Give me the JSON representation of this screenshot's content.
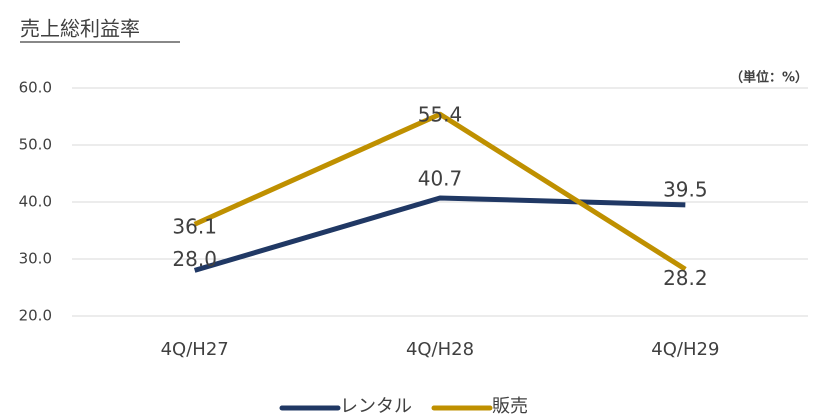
{
  "chart_data": {
    "type": "line",
    "title": "売上総利益率",
    "subtitle": "（単位：%）",
    "categories": [
      "4Q/H27",
      "4Q/H28",
      "4Q/H29"
    ],
    "series": [
      {
        "name": "レンタル",
        "color": "#203864",
        "values": [
          28.0,
          40.7,
          39.5
        ],
        "value_labels": [
          "28.0",
          "40.7",
          "39.5"
        ]
      },
      {
        "name": "販売",
        "color": "#bf9000",
        "values": [
          36.1,
          55.4,
          28.2
        ],
        "value_labels": [
          "36.1",
          "55.4",
          "28.2"
        ]
      }
    ],
    "ylim": [
      20,
      60
    ],
    "yticks": [
      {
        "value": 20,
        "label": "20.0"
      },
      {
        "value": 30,
        "label": "30.0"
      },
      {
        "value": 40,
        "label": "40.0"
      },
      {
        "value": 50,
        "label": "50.0"
      },
      {
        "value": 60,
        "label": "60.0"
      }
    ],
    "grid": true,
    "legend": "bottom"
  }
}
